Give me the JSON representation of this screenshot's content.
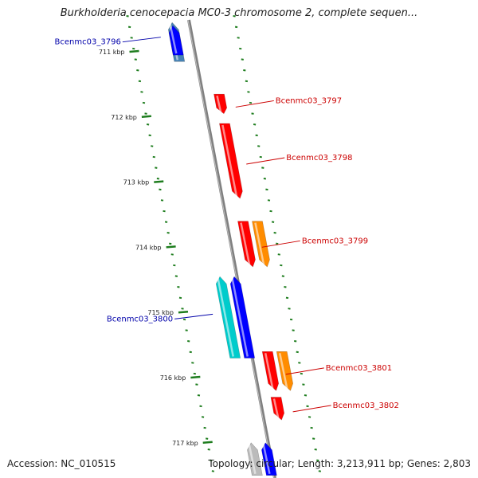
{
  "title": "Burkholderia cenocepacia MC0-3 chromosome 2, complete sequen...",
  "footer": {
    "accession": "Accession: NC_010515",
    "topology": "Topology: circular; Length: 3,213,911 bp; Genes: 2,803"
  },
  "colors": {
    "backbone": "#808080",
    "tick_dots": "#1e7d1e",
    "forward_label": "#cc0000",
    "reverse_label": "#0000aa",
    "gene_red": "#ff0000",
    "gene_orange": "#ff8c00",
    "gene_blue": "#0000ff",
    "gene_steel": "#4682b4",
    "gene_cyan": "#00cccc",
    "gene_gray": "#bbbbbb"
  },
  "scale_ticks": [
    {
      "label": "711 kbp",
      "kbp": 711
    },
    {
      "label": "712 kbp",
      "kbp": 712
    },
    {
      "label": "713 kbp",
      "kbp": 713
    },
    {
      "label": "714 kbp",
      "kbp": 714
    },
    {
      "label": "715 kbp",
      "kbp": 715
    },
    {
      "label": "716 kbp",
      "kbp": 716
    },
    {
      "label": "717 kbp",
      "kbp": 717
    }
  ],
  "genes": [
    {
      "label": "",
      "strand": "reverse",
      "color": "steel",
      "start_kbp": 710.55,
      "end_kbp": 711.15
    },
    {
      "label": "Bcenmc03_3796",
      "strand": "reverse",
      "color": "blue",
      "start_kbp": 710.6,
      "end_kbp": 711.05
    },
    {
      "label": "Bcenmc03_3797",
      "strand": "forward",
      "color": "red",
      "start_kbp": 711.65,
      "end_kbp": 711.95
    },
    {
      "label": "Bcenmc03_3798",
      "strand": "forward",
      "color": "red",
      "start_kbp": 712.1,
      "end_kbp": 713.25
    },
    {
      "label": "Bcenmc03_3799",
      "strand": "forward",
      "color": "red",
      "start_kbp": 713.6,
      "end_kbp": 714.3
    },
    {
      "label": "",
      "strand": "forward",
      "color": "orange",
      "start_kbp": 713.6,
      "end_kbp": 714.3
    },
    {
      "label": "Bcenmc03_3800",
      "strand": "reverse",
      "color": "cyan",
      "start_kbp": 714.45,
      "end_kbp": 715.7
    },
    {
      "label": "",
      "strand": "reverse",
      "color": "blue",
      "start_kbp": 714.45,
      "end_kbp": 715.7
    },
    {
      "label": "Bcenmc03_3801",
      "strand": "forward",
      "color": "red",
      "start_kbp": 715.6,
      "end_kbp": 716.2
    },
    {
      "label": "",
      "strand": "forward",
      "color": "orange",
      "start_kbp": 715.6,
      "end_kbp": 716.2
    },
    {
      "label": "Bcenmc03_3802",
      "strand": "forward",
      "color": "red",
      "start_kbp": 716.3,
      "end_kbp": 716.65
    },
    {
      "label": "",
      "strand": "reverse",
      "color": "gray",
      "start_kbp": 717.0,
      "end_kbp": 717.5
    },
    {
      "label": "",
      "strand": "reverse",
      "color": "blue",
      "start_kbp": 717.0,
      "end_kbp": 717.5
    }
  ]
}
